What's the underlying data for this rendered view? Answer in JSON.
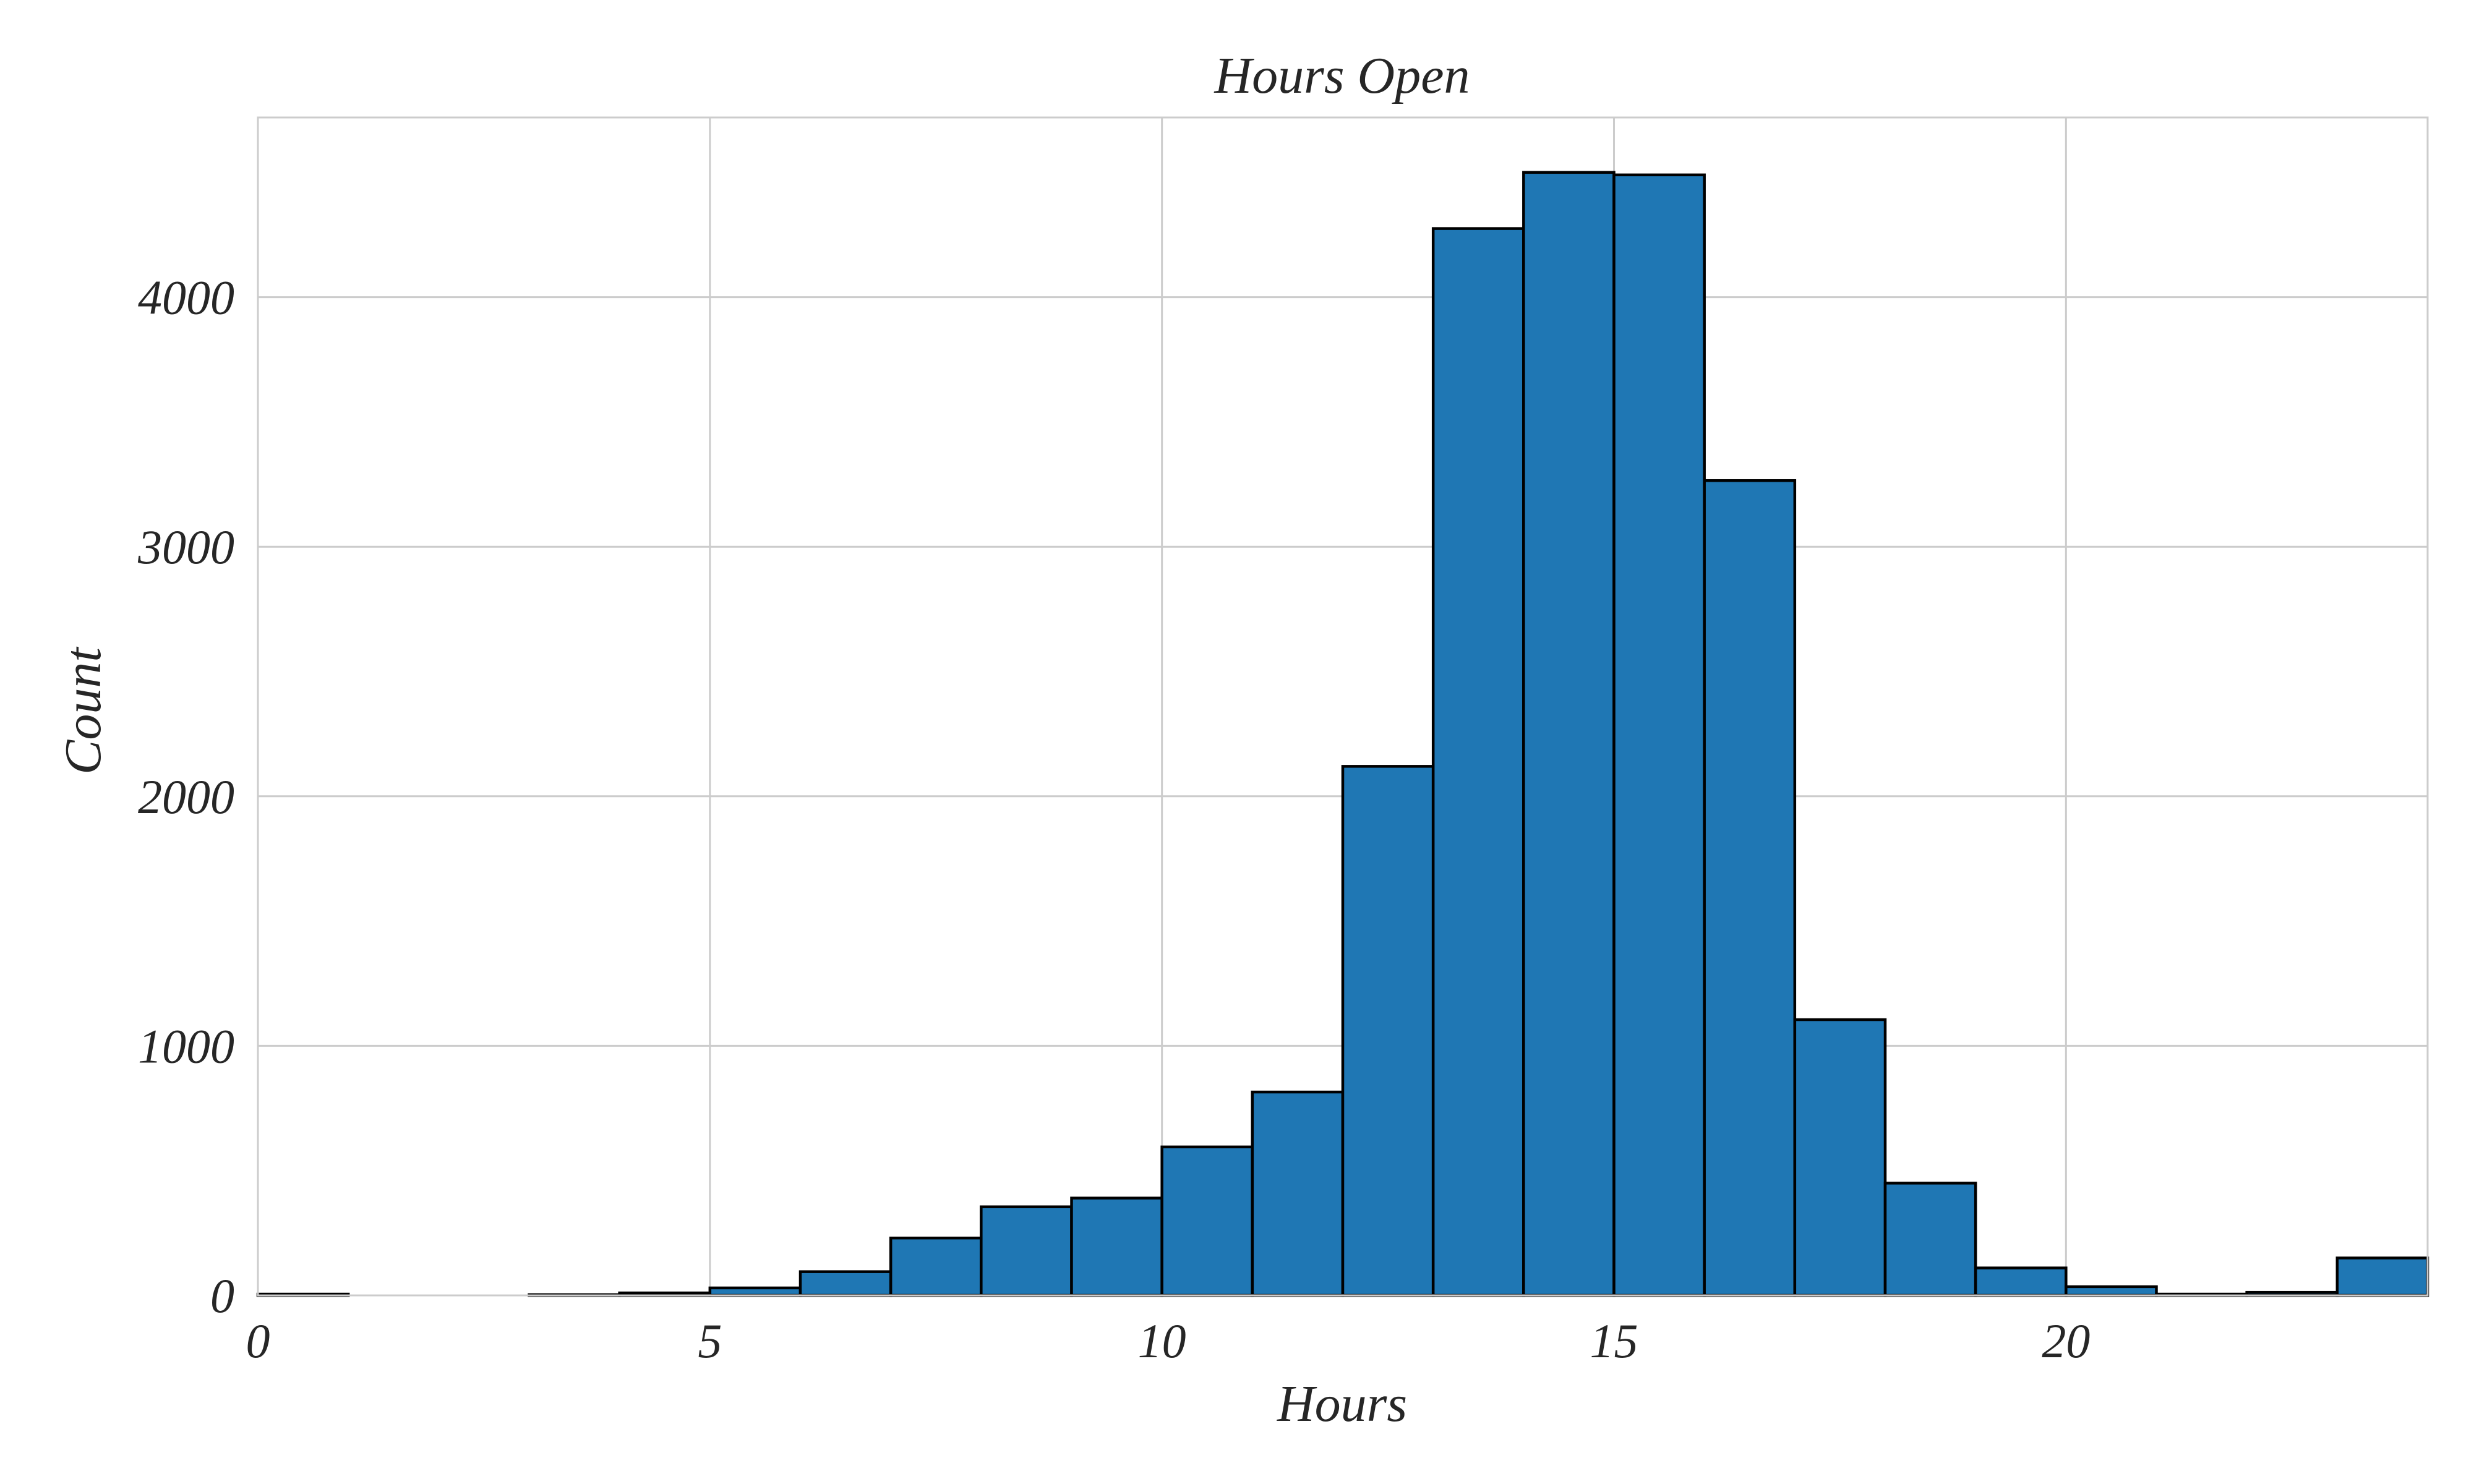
{
  "chart_data": {
    "type": "bar",
    "title": "Hours Open",
    "xlabel": "Hours",
    "ylabel": "Count",
    "xlim": [
      0,
      24
    ],
    "ylim": [
      0,
      4720
    ],
    "xticks": [
      0,
      5,
      10,
      15,
      20
    ],
    "xtick_labels": [
      "0",
      "5",
      "10",
      "15",
      "20"
    ],
    "yticks": [
      0,
      1000,
      2000,
      3000,
      4000
    ],
    "ytick_labels": [
      "0",
      "1000",
      "2000",
      "3000",
      "4000"
    ],
    "grid": true,
    "bar_color": "#1f77b4",
    "edge_color": "#000000",
    "bins": [
      {
        "x0": 0,
        "x1": 1,
        "count": 5
      },
      {
        "x0": 1,
        "x1": 2,
        "count": 0
      },
      {
        "x0": 2,
        "x1": 3,
        "count": 0
      },
      {
        "x0": 3,
        "x1": 4,
        "count": 3
      },
      {
        "x0": 4,
        "x1": 5,
        "count": 10
      },
      {
        "x0": 5,
        "x1": 6,
        "count": 30
      },
      {
        "x0": 6,
        "x1": 7,
        "count": 95
      },
      {
        "x0": 7,
        "x1": 8,
        "count": 230
      },
      {
        "x0": 8,
        "x1": 9,
        "count": 355
      },
      {
        "x0": 9,
        "x1": 10,
        "count": 390
      },
      {
        "x0": 10,
        "x1": 11,
        "count": 595
      },
      {
        "x0": 11,
        "x1": 12,
        "count": 815
      },
      {
        "x0": 12,
        "x1": 13,
        "count": 2120
      },
      {
        "x0": 13,
        "x1": 14,
        "count": 4275
      },
      {
        "x0": 14,
        "x1": 15,
        "count": 4500
      },
      {
        "x0": 15,
        "x1": 16,
        "count": 4490
      },
      {
        "x0": 16,
        "x1": 17,
        "count": 3265
      },
      {
        "x0": 17,
        "x1": 18,
        "count": 1105
      },
      {
        "x0": 18,
        "x1": 19,
        "count": 450
      },
      {
        "x0": 19,
        "x1": 20,
        "count": 110
      },
      {
        "x0": 20,
        "x1": 21,
        "count": 35
      },
      {
        "x0": 21,
        "x1": 22,
        "count": 5
      },
      {
        "x0": 22,
        "x1": 23,
        "count": 12
      },
      {
        "x0": 23,
        "x1": 24,
        "count": 150
      }
    ]
  }
}
